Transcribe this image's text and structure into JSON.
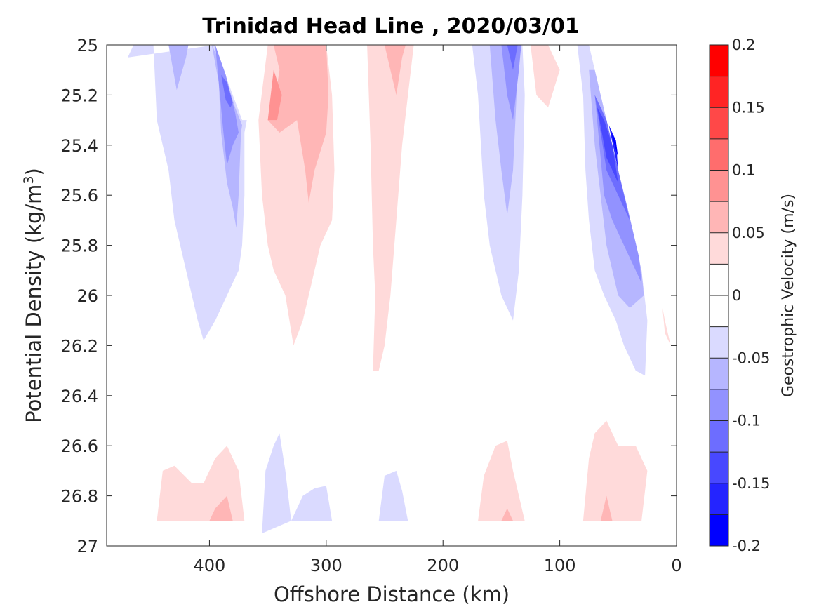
{
  "chart_data": {
    "type": "contourf",
    "title": "Trinidad Head Line , 2020/03/01",
    "xlabel": "Offshore Distance (km)",
    "ylabel": "Potential Density (kg/m",
    "ylabel_superscript": "3",
    "ylabel_suffix": ")",
    "x_direction": "reversed",
    "y_direction": "reversed",
    "xlim": [
      488,
      0
    ],
    "ylim": [
      25,
      27
    ],
    "xticks": [
      400,
      300,
      200,
      100,
      0
    ],
    "xtick_labels": [
      "400",
      "300",
      "200",
      "100",
      "0"
    ],
    "yticks": [
      25,
      25.2,
      25.4,
      25.6,
      25.8,
      26,
      26.2,
      26.4,
      26.6,
      26.8,
      27
    ],
    "ytick_labels": [
      "25",
      "25.2",
      "25.4",
      "25.6",
      "25.8",
      "26",
      "26.2",
      "26.4",
      "26.6",
      "26.8",
      "27"
    ],
    "colorbar": {
      "label": "Geostrophic Velocity (m/s)",
      "limits": [
        -0.2,
        0.2
      ],
      "levels": [
        -0.2,
        -0.175,
        -0.15,
        -0.125,
        -0.1,
        -0.075,
        -0.05,
        -0.025,
        0,
        0.025,
        0.05,
        0.075,
        0.1,
        0.125,
        0.15,
        0.175,
        0.2
      ],
      "colors": [
        "#0000ff",
        "#2424ff",
        "#4848ff",
        "#6d6dff",
        "#9292ff",
        "#b6b6ff",
        "#dadaff",
        "#ffffff",
        "#ffffff",
        "#ffdada",
        "#ffb6b6",
        "#ff9292",
        "#ff6d6d",
        "#ff4848",
        "#ff2424",
        "#ff0000"
      ],
      "ticks": [
        -0.2,
        -0.15,
        -0.1,
        -0.05,
        0,
        0.05,
        0.1,
        0.15,
        0.2
      ],
      "tick_labels": [
        "-0.2",
        "-0.15",
        "-0.1",
        "-0.05",
        "0",
        "0.05",
        "0.1",
        "0.15",
        "0.2"
      ]
    },
    "regions": [
      {
        "name": "offshore-neg-1-l1",
        "level": -0.0375,
        "pts": [
          [
            470,
            25.05
          ],
          [
            465,
            25
          ],
          [
            448,
            25
          ],
          [
            445,
            25.3
          ],
          [
            435,
            25.5
          ],
          [
            430,
            25.7
          ],
          [
            420,
            25.9
          ],
          [
            410,
            26.1
          ],
          [
            405,
            26.18
          ],
          [
            395,
            26.1
          ],
          [
            385,
            26
          ],
          [
            375,
            25.9
          ],
          [
            372,
            25.8
          ],
          [
            370,
            25.6
          ],
          [
            370,
            25.35
          ],
          [
            368,
            25.3
          ],
          [
            372,
            25.3
          ],
          [
            380,
            25.2
          ],
          [
            392,
            25.05
          ],
          [
            395,
            25
          ]
        ]
      },
      {
        "name": "offshore-neg-1-l2",
        "level": -0.0625,
        "pts": [
          [
            435,
            25
          ],
          [
            428,
            25.18
          ],
          [
            420,
            25.05
          ],
          [
            418,
            25
          ]
        ]
      },
      {
        "name": "offshore-neg-1-l2b",
        "level": -0.0625,
        "pts": [
          [
            398,
            25
          ],
          [
            392,
            25.15
          ],
          [
            390,
            25.35
          ],
          [
            385,
            25.55
          ],
          [
            380,
            25.65
          ],
          [
            377,
            25.73
          ],
          [
            375,
            25.6
          ],
          [
            373,
            25.35
          ],
          [
            372,
            25.32
          ],
          [
            378,
            25.25
          ],
          [
            388,
            25.1
          ]
        ]
      },
      {
        "name": "offshore-neg-1-l3",
        "level": -0.0875,
        "pts": [
          [
            395,
            25
          ],
          [
            392,
            25.15
          ],
          [
            388,
            25.35
          ],
          [
            385,
            25.48
          ],
          [
            380,
            25.4
          ],
          [
            375,
            25.35
          ],
          [
            378,
            25.27
          ],
          [
            386,
            25.12
          ]
        ]
      },
      {
        "name": "offshore-neg-1-l4",
        "level": -0.1125,
        "pts": [
          [
            390,
            25.12
          ],
          [
            386,
            25.22
          ],
          [
            382,
            25.25
          ],
          [
            380,
            25.23
          ],
          [
            385,
            25.15
          ]
        ]
      },
      {
        "name": "pos-main-l1",
        "level": 0.0375,
        "pts": [
          [
            350,
            25
          ],
          [
            358,
            25.3
          ],
          [
            355,
            25.6
          ],
          [
            350,
            25.8
          ],
          [
            345,
            25.9
          ],
          [
            335,
            26
          ],
          [
            328,
            26.2
          ],
          [
            320,
            26.1
          ],
          [
            315,
            26
          ],
          [
            305,
            25.8
          ],
          [
            295,
            25.7
          ],
          [
            293,
            25.5
          ],
          [
            295,
            25.2
          ],
          [
            300,
            25
          ],
          [
            288,
            25
          ]
        ]
      },
      {
        "name": "pos-main-l2",
        "level": 0.0625,
        "pts": [
          [
            345,
            25
          ],
          [
            340,
            25.1
          ],
          [
            345,
            25.25
          ],
          [
            350,
            25.3
          ],
          [
            340,
            25.35
          ],
          [
            325,
            25.3
          ],
          [
            318,
            25.5
          ],
          [
            315,
            25.63
          ],
          [
            310,
            25.5
          ],
          [
            300,
            25.35
          ],
          [
            298,
            25.2
          ],
          [
            300,
            25
          ]
        ]
      },
      {
        "name": "pos-main-l3",
        "level": 0.0875,
        "pts": [
          [
            345,
            25.1
          ],
          [
            350,
            25.3
          ],
          [
            342,
            25.3
          ],
          [
            338,
            25.2
          ]
        ]
      },
      {
        "name": "pos-mid-l1",
        "level": 0.0375,
        "pts": [
          [
            265,
            25
          ],
          [
            262,
            25.4
          ],
          [
            260,
            25.8
          ],
          [
            258,
            26
          ],
          [
            260,
            26.3
          ],
          [
            255,
            26.3
          ],
          [
            250,
            26.2
          ],
          [
            245,
            26
          ],
          [
            240,
            25.7
          ],
          [
            235,
            25.4
          ],
          [
            230,
            25.2
          ],
          [
            225,
            25
          ]
        ]
      },
      {
        "name": "pos-mid-l2",
        "level": 0.0625,
        "pts": [
          [
            250,
            25
          ],
          [
            245,
            25.1
          ],
          [
            240,
            25.2
          ],
          [
            235,
            25.05
          ],
          [
            232,
            25
          ]
        ]
      },
      {
        "name": "neg-mid-l1",
        "level": -0.0375,
        "pts": [
          [
            175,
            25
          ],
          [
            170,
            25.2
          ],
          [
            165,
            25.6
          ],
          [
            160,
            25.8
          ],
          [
            150,
            26
          ],
          [
            140,
            26.1
          ],
          [
            135,
            25.9
          ],
          [
            132,
            25.6
          ],
          [
            130,
            25.2
          ],
          [
            132,
            25
          ]
        ]
      },
      {
        "name": "neg-mid-l2",
        "level": -0.0625,
        "pts": [
          [
            160,
            25
          ],
          [
            155,
            25.3
          ],
          [
            150,
            25.5
          ],
          [
            145,
            25.68
          ],
          [
            140,
            25.5
          ],
          [
            138,
            25.3
          ],
          [
            135,
            25
          ],
          [
            132,
            25
          ]
        ]
      },
      {
        "name": "neg-mid-l3",
        "level": -0.0875,
        "pts": [
          [
            150,
            25
          ],
          [
            145,
            25.2
          ],
          [
            140,
            25.3
          ],
          [
            135,
            25.1
          ],
          [
            133,
            25
          ]
        ]
      },
      {
        "name": "neg-mid-l4",
        "level": -0.1125,
        "pts": [
          [
            145,
            25
          ],
          [
            140,
            25.1
          ],
          [
            136,
            25
          ]
        ]
      },
      {
        "name": "pos-small",
        "level": 0.0375,
        "pts": [
          [
            125,
            25
          ],
          [
            120,
            25.2
          ],
          [
            110,
            25.25
          ],
          [
            100,
            25.1
          ],
          [
            110,
            25
          ],
          [
            122,
            25
          ]
        ]
      },
      {
        "name": "neg-coast-l1",
        "level": -0.0375,
        "pts": [
          [
            85,
            25
          ],
          [
            80,
            25.2
          ],
          [
            78,
            25.5
          ],
          [
            75,
            25.7
          ],
          [
            70,
            25.9
          ],
          [
            62,
            26
          ],
          [
            52,
            26.1
          ],
          [
            45,
            26.2
          ],
          [
            35,
            26.3
          ],
          [
            27,
            26.32
          ],
          [
            25,
            26.1
          ],
          [
            30,
            25.9
          ],
          [
            40,
            25.7
          ],
          [
            50,
            25.5
          ],
          [
            60,
            25.3
          ],
          [
            70,
            25.1
          ],
          [
            75,
            25
          ]
        ]
      },
      {
        "name": "neg-coast-l2",
        "level": -0.0625,
        "pts": [
          [
            75,
            25.1
          ],
          [
            70,
            25.4
          ],
          [
            65,
            25.6
          ],
          [
            60,
            25.8
          ],
          [
            50,
            26
          ],
          [
            40,
            26.05
          ],
          [
            28,
            26
          ],
          [
            30,
            25.9
          ],
          [
            40,
            25.7
          ],
          [
            50,
            25.5
          ],
          [
            60,
            25.3
          ],
          [
            70,
            25.1
          ]
        ]
      },
      {
        "name": "neg-coast-l3",
        "level": -0.0875,
        "pts": [
          [
            70,
            25.2
          ],
          [
            62,
            25.6
          ],
          [
            55,
            25.7
          ],
          [
            45,
            25.8
          ],
          [
            30,
            25.95
          ],
          [
            32,
            25.85
          ],
          [
            42,
            25.65
          ],
          [
            50,
            25.5
          ],
          [
            60,
            25.3
          ]
        ]
      },
      {
        "name": "neg-coast-l4",
        "level": -0.1125,
        "pts": [
          [
            70,
            25.2
          ],
          [
            60,
            25.5
          ],
          [
            50,
            25.6
          ],
          [
            40,
            25.7
          ],
          [
            45,
            25.6
          ],
          [
            50,
            25.5
          ],
          [
            60,
            25.3
          ]
        ]
      },
      {
        "name": "neg-coast-l5",
        "level": -0.1375,
        "pts": [
          [
            68,
            25.25
          ],
          [
            60,
            25.45
          ],
          [
            50,
            25.55
          ],
          [
            55,
            25.4
          ],
          [
            62,
            25.3
          ]
        ]
      },
      {
        "name": "neg-coast-l6",
        "level": -0.1625,
        "pts": [
          [
            58,
            25.32
          ],
          [
            50,
            25.5
          ],
          [
            52,
            25.38
          ]
        ]
      },
      {
        "name": "neg-coast-l7",
        "level": -0.1875,
        "pts": [
          [
            56,
            25.35
          ],
          [
            50,
            25.45
          ],
          [
            52,
            25.38
          ]
        ]
      },
      {
        "name": "pos-coast-tip",
        "level": 0.0375,
        "pts": [
          [
            12,
            26.05
          ],
          [
            10,
            26.1
          ],
          [
            5,
            26.2
          ],
          [
            10,
            26.15
          ]
        ]
      },
      {
        "name": "pos-deep-1",
        "level": 0.0375,
        "pts": [
          [
            445,
            26.9
          ],
          [
            440,
            26.7
          ],
          [
            430,
            26.68
          ],
          [
            415,
            26.75
          ],
          [
            405,
            26.75
          ],
          [
            395,
            26.65
          ],
          [
            385,
            26.6
          ],
          [
            375,
            26.7
          ],
          [
            370,
            26.9
          ]
        ]
      },
      {
        "name": "pos-deep-1b",
        "level": 0.0625,
        "pts": [
          [
            400,
            26.9
          ],
          [
            395,
            26.85
          ],
          [
            385,
            26.8
          ],
          [
            380,
            26.9
          ]
        ]
      },
      {
        "name": "neg-deep-1",
        "level": -0.0375,
        "pts": [
          [
            355,
            26.95
          ],
          [
            352,
            26.7
          ],
          [
            345,
            26.6
          ],
          [
            340,
            26.55
          ],
          [
            335,
            26.7
          ],
          [
            330,
            26.9
          ]
        ]
      },
      {
        "name": "neg-deep-2",
        "level": -0.0375,
        "pts": [
          [
            330,
            26.9
          ],
          [
            320,
            26.8
          ],
          [
            310,
            26.77
          ],
          [
            300,
            26.76
          ],
          [
            295,
            26.9
          ]
        ]
      },
      {
        "name": "neg-deep-3",
        "level": -0.0375,
        "pts": [
          [
            255,
            26.9
          ],
          [
            250,
            26.72
          ],
          [
            240,
            26.7
          ],
          [
            235,
            26.78
          ],
          [
            230,
            26.9
          ]
        ]
      },
      {
        "name": "pos-deep-2",
        "level": 0.0375,
        "pts": [
          [
            170,
            26.9
          ],
          [
            165,
            26.72
          ],
          [
            155,
            26.6
          ],
          [
            145,
            26.58
          ],
          [
            140,
            26.7
          ],
          [
            135,
            26.8
          ],
          [
            130,
            26.9
          ]
        ]
      },
      {
        "name": "pos-deep-2b",
        "level": 0.0625,
        "pts": [
          [
            150,
            26.9
          ],
          [
            145,
            26.85
          ],
          [
            140,
            26.9
          ]
        ]
      },
      {
        "name": "pos-deep-3",
        "level": 0.0375,
        "pts": [
          [
            80,
            26.9
          ],
          [
            75,
            26.65
          ],
          [
            70,
            26.55
          ],
          [
            60,
            26.5
          ],
          [
            50,
            26.6
          ],
          [
            35,
            26.6
          ],
          [
            25,
            26.7
          ],
          [
            30,
            26.9
          ]
        ]
      },
      {
        "name": "pos-deep-3b",
        "level": 0.0625,
        "pts": [
          [
            65,
            26.9
          ],
          [
            60,
            26.8
          ],
          [
            55,
            26.9
          ]
        ]
      }
    ]
  }
}
